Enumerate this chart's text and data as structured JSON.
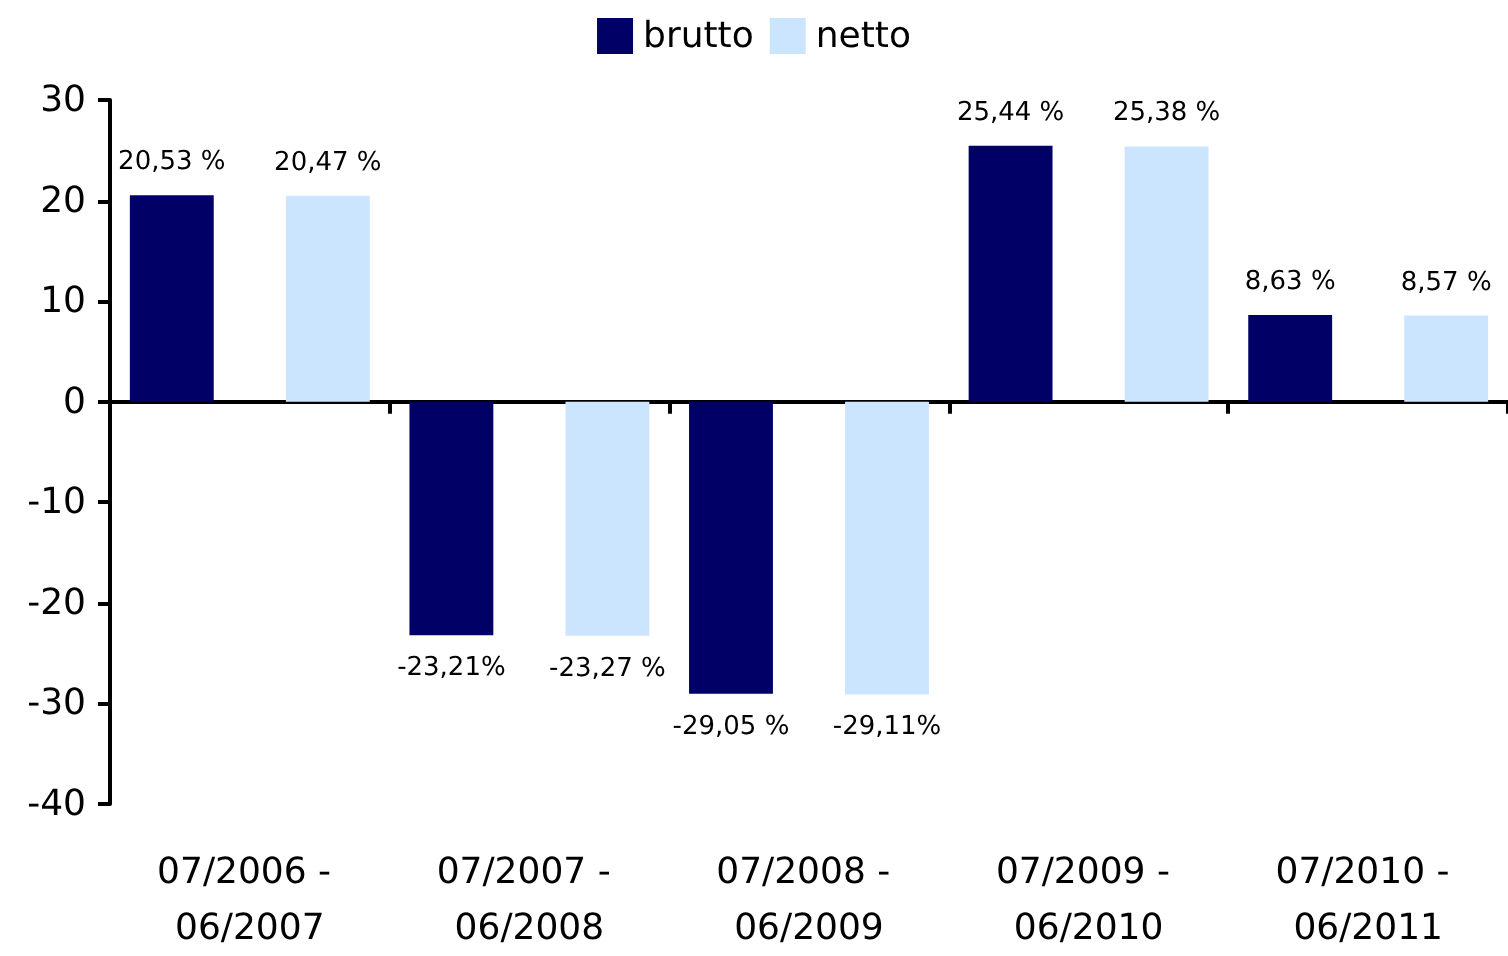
{
  "chart_data": {
    "type": "bar",
    "categories": [
      "07/2006 - 06/2007",
      "07/2007 - 06/2008",
      "07/2008 - 06/2009",
      "07/2009 - 06/2010",
      "07/2010 - 06/2011"
    ],
    "series": [
      {
        "name": "brutto",
        "color": "#000066",
        "values": [
          20.53,
          -23.21,
          -29.05,
          25.44,
          8.63
        ],
        "value_labels": [
          "20,53 %",
          "-23,21%",
          "-29,05 %",
          "25,44 %",
          "8,63 %"
        ]
      },
      {
        "name": "netto",
        "color": "#cce5ff",
        "values": [
          20.47,
          -23.27,
          -29.11,
          25.38,
          8.57
        ],
        "value_labels": [
          "20,47 %",
          "-23,27 %",
          "-29,11%",
          "25,38 %",
          "8,57 %"
        ]
      }
    ],
    "ylim": [
      -40,
      30
    ],
    "yticks": [
      -40,
      -30,
      -20,
      -10,
      0,
      10,
      20,
      30
    ],
    "legend": "top"
  }
}
